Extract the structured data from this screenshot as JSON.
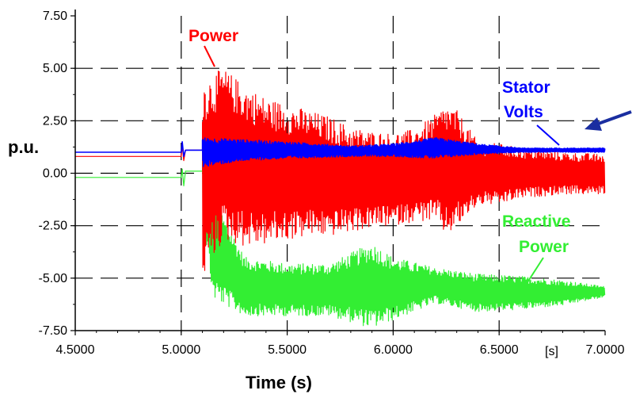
{
  "chart_data": {
    "type": "line",
    "title": "",
    "xlabel": "Time (s)",
    "ylabel": "p.u.",
    "x_unit_tick": "[s]",
    "xlim": [
      4.5,
      7.0
    ],
    "ylim": [
      -7.5,
      7.5
    ],
    "x_ticks": [
      "4.5000",
      "5.0000",
      "5.5000",
      "6.0000",
      "6.5000",
      "7.0000"
    ],
    "y_ticks": [
      "7.50",
      "5.00",
      "2.50",
      "0.00",
      "-2.50",
      "-5.00",
      "-7.50"
    ],
    "grid": true,
    "legend": "none",
    "annotations": [
      {
        "text": "Power",
        "color": "#ff0000",
        "series": "Power"
      },
      {
        "text": "Stator",
        "color": "#0000ff",
        "series": "Stator Volts"
      },
      {
        "text": "Volts",
        "color": "#0000ff",
        "series": "Stator Volts"
      },
      {
        "text": "Reactive",
        "color": "#33ee33",
        "series": "Reactive Power"
      },
      {
        "text": "Power",
        "color": "#33ee33",
        "series": "Reactive Power"
      }
    ],
    "series": [
      {
        "name": "Power",
        "color": "#ff0000",
        "description": "pre-fault steady 0.8 p.u., oscillation envelope after disturbance at 5.1 s",
        "envelope": {
          "t": [
            5.1,
            5.2,
            5.3,
            5.4,
            5.5,
            5.6,
            5.7,
            5.8,
            5.9,
            6.0,
            6.1,
            6.2,
            6.25,
            6.3,
            6.4,
            6.5,
            6.6,
            6.8,
            7.0
          ],
          "upper": [
            4.5,
            5.0,
            4.2,
            3.6,
            3.3,
            3.0,
            2.7,
            2.2,
            2.0,
            1.9,
            2.1,
            2.8,
            3.3,
            3.0,
            1.5,
            1.4,
            1.2,
            1.0,
            0.9
          ],
          "lower": [
            -5.0,
            -3.2,
            -3.5,
            -3.4,
            -3.2,
            -3.0,
            -3.0,
            -2.8,
            -2.6,
            -2.5,
            -2.3,
            -2.3,
            -3.0,
            -2.6,
            -1.5,
            -1.5,
            -1.2,
            -1.0,
            -1.0
          ]
        },
        "steady": 0.8
      },
      {
        "name": "Stator Volts",
        "color": "#0000ff",
        "description": "pre-fault ~1.0 p.u., small oscillation after disturbance, settles to ~1.1 p.u.",
        "envelope": {
          "t": [
            5.1,
            5.3,
            5.5,
            5.8,
            6.0,
            6.2,
            6.4,
            6.6,
            7.0
          ],
          "upper": [
            1.7,
            1.6,
            1.5,
            1.3,
            1.4,
            1.7,
            1.4,
            1.2,
            1.2
          ],
          "lower": [
            0.3,
            0.6,
            0.7,
            0.8,
            0.8,
            0.7,
            0.9,
            1.0,
            1.0
          ]
        },
        "steady": 1.0
      },
      {
        "name": "Reactive Power",
        "color": "#33ee33",
        "description": "pre-fault ~-0.2 p.u., drops sharply after 5.1 s, oscillates around -5.5 p.u.",
        "envelope": {
          "t": [
            5.1,
            5.15,
            5.3,
            5.5,
            5.7,
            5.9,
            6.0,
            6.2,
            6.4,
            6.6,
            6.8,
            7.0
          ],
          "upper": [
            2.5,
            -1.0,
            -4.0,
            -4.3,
            -4.3,
            -3.3,
            -4.0,
            -4.5,
            -4.8,
            -4.9,
            -5.1,
            -5.4
          ],
          "lower": [
            -2.0,
            -6.0,
            -6.8,
            -6.8,
            -6.8,
            -7.4,
            -7.0,
            -6.2,
            -6.6,
            -6.5,
            -6.3,
            -5.9
          ]
        },
        "steady": -0.2
      }
    ]
  }
}
